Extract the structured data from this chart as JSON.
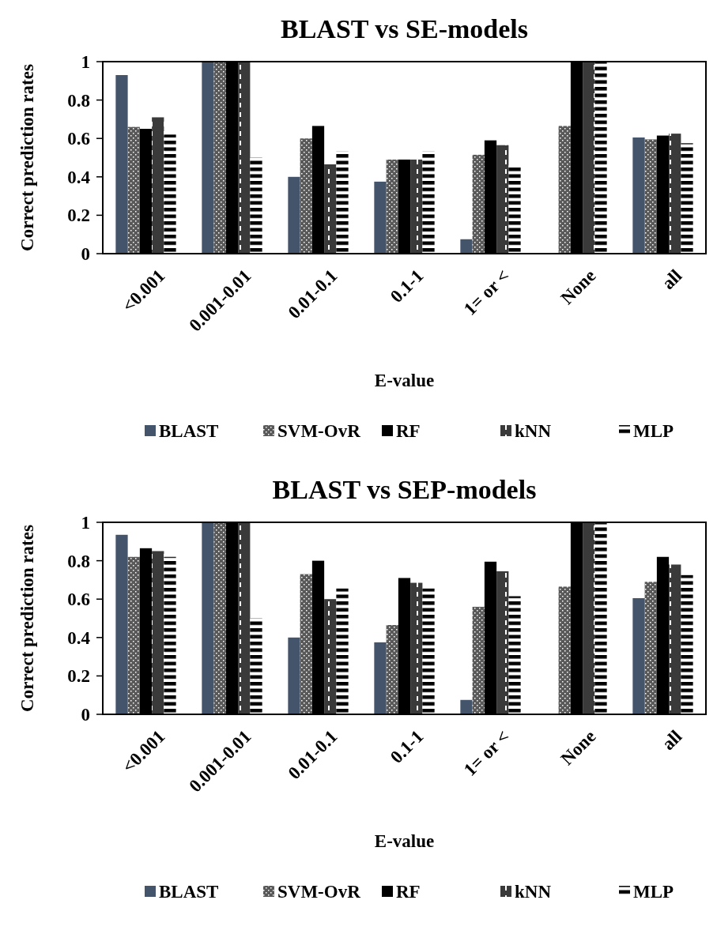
{
  "chart_data": [
    {
      "type": "bar",
      "title": "BLAST vs SE-models",
      "xlabel": "E-value",
      "ylabel": "Correct prediction rates",
      "categories": [
        "<0.001",
        "0.001-0.01",
        "0.01-0.1",
        "0.1-1",
        "1= or <",
        "None",
        "all"
      ],
      "ylim": [
        0,
        1
      ],
      "yticks": [
        0,
        0.2,
        0.4,
        0.6,
        0.8,
        1
      ],
      "legend": "bottom",
      "grid": false,
      "series": [
        {
          "name": "BLAST",
          "color": "#44546a",
          "values": [
            0.93,
            1,
            0.4,
            0.375,
            0.075,
            0,
            0.605
          ]
        },
        {
          "name": "SVM-OvR",
          "color": "#595959",
          "values": [
            0.66,
            1,
            0.6,
            0.49,
            0.515,
            0.665,
            0.595
          ]
        },
        {
          "name": "RF",
          "color": "#000000",
          "values": [
            0.65,
            1,
            0.665,
            0.49,
            0.59,
            1,
            0.615
          ]
        },
        {
          "name": "kNN",
          "color": "#3a3a3a",
          "values": [
            0.71,
            1,
            0.465,
            0.49,
            0.565,
            1,
            0.625
          ]
        },
        {
          "name": "MLP",
          "color": "#000000",
          "values": [
            0.62,
            0.5,
            0.535,
            0.535,
            0.46,
            1,
            0.575
          ]
        }
      ]
    },
    {
      "type": "bar",
      "title": "BLAST vs SEP-models",
      "xlabel": "E-value",
      "ylabel": "Correct prediction rates",
      "categories": [
        "<0.001",
        "0.001-0.01",
        "0.01-0.1",
        "0.1-1",
        "1= or <",
        "None",
        "all"
      ],
      "ylim": [
        0,
        1
      ],
      "yticks": [
        0,
        0.2,
        0.4,
        0.6,
        0.8,
        1
      ],
      "legend": "bottom",
      "grid": false,
      "series": [
        {
          "name": "BLAST",
          "color": "#44546a",
          "values": [
            0.935,
            1,
            0.4,
            0.375,
            0.075,
            0,
            0.605
          ]
        },
        {
          "name": "SVM-OvR",
          "color": "#595959",
          "values": [
            0.82,
            1,
            0.73,
            0.465,
            0.56,
            0.665,
            0.69
          ]
        },
        {
          "name": "RF",
          "color": "#000000",
          "values": [
            0.865,
            1,
            0.8,
            0.71,
            0.795,
            1,
            0.82
          ]
        },
        {
          "name": "kNN",
          "color": "#3a3a3a",
          "values": [
            0.85,
            1,
            0.6,
            0.685,
            0.745,
            1,
            0.78
          ]
        },
        {
          "name": "MLP",
          "color": "#000000",
          "values": [
            0.82,
            0.5,
            0.655,
            0.655,
            0.615,
            1,
            0.725
          ]
        }
      ]
    }
  ]
}
